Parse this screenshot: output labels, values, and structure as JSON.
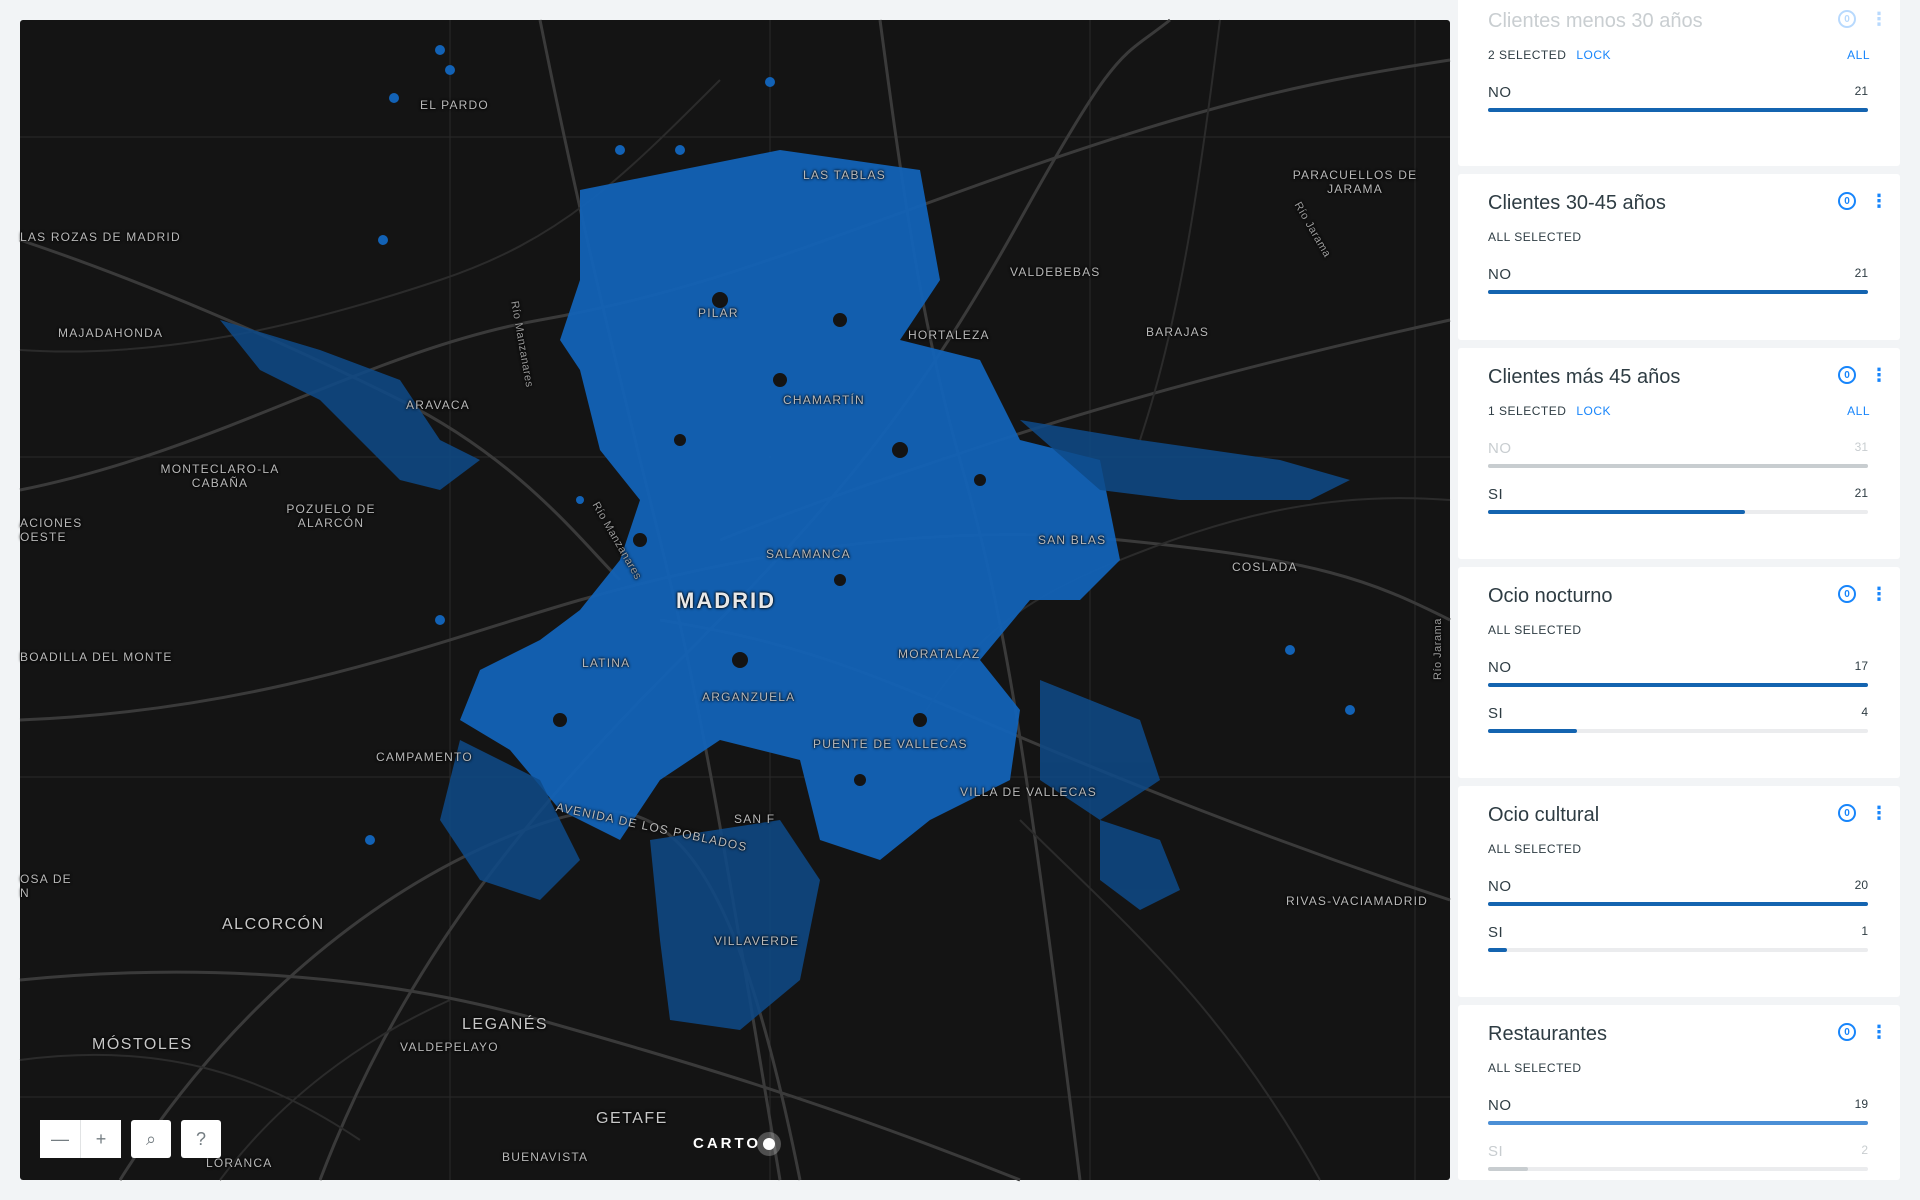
{
  "map": {
    "place_labels": [
      {
        "id": "el-pardo",
        "text": "EL PARDO"
      },
      {
        "id": "las-tablas",
        "text": "LAS TABLAS"
      },
      {
        "id": "paracuellos",
        "text": "PARACUELLOS DE JARAMA"
      },
      {
        "id": "las-rozas",
        "text": "LAS ROZAS DE MADRID"
      },
      {
        "id": "valdebebas",
        "text": "VALDEBEBAS"
      },
      {
        "id": "majadahonda",
        "text": "MAJADAHONDA"
      },
      {
        "id": "pilar",
        "text": "PILAR"
      },
      {
        "id": "hortaleza",
        "text": "HORTALEZA"
      },
      {
        "id": "barajas",
        "text": "BARAJAS"
      },
      {
        "id": "aravaca",
        "text": "ARAVACA"
      },
      {
        "id": "chamartin",
        "text": "CHAMARTÍN"
      },
      {
        "id": "monteclaro",
        "text": "MONTECLARO-LA CABAÑA"
      },
      {
        "id": "pozuelo",
        "text": "POZUELO DE ALARCÓN"
      },
      {
        "id": "aciones",
        "text": "ACIONES OESTE"
      },
      {
        "id": "san-blas",
        "text": "SAN BLAS"
      },
      {
        "id": "salamanca",
        "text": "SALAMANCA"
      },
      {
        "id": "coslada",
        "text": "COSLADA"
      },
      {
        "id": "madrid",
        "text": "MADRID"
      },
      {
        "id": "boadilla",
        "text": "BOADILLA DEL MONTE"
      },
      {
        "id": "moratalaz",
        "text": "MORATALAZ"
      },
      {
        "id": "latina",
        "text": "LATINA"
      },
      {
        "id": "arganzuela",
        "text": "ARGANZUELA"
      },
      {
        "id": "puente-vallecas",
        "text": "PUENTE DE VALLECAS"
      },
      {
        "id": "campamento",
        "text": "CAMPAMENTO"
      },
      {
        "id": "villa-vallecas",
        "text": "VILLA DE VALLECAS"
      },
      {
        "id": "avenida",
        "text": "AVENIDA DE LOS POBLADOS"
      },
      {
        "id": "san-f",
        "text": "SAN F"
      },
      {
        "id": "osa-de",
        "text": "OSA DE N"
      },
      {
        "id": "alcorcon",
        "text": "ALCORCÓN"
      },
      {
        "id": "rivas",
        "text": "RIVAS-VACIAMADRID"
      },
      {
        "id": "villaverde",
        "text": "VILLAVERDE"
      },
      {
        "id": "leganes",
        "text": "LEGANÉS"
      },
      {
        "id": "mostoles",
        "text": "MÓSTOLES"
      },
      {
        "id": "valdepelayo",
        "text": "VALDEPELAYO"
      },
      {
        "id": "getafe",
        "text": "GETAFE"
      },
      {
        "id": "buenavista",
        "text": "BUENAVISTA"
      },
      {
        "id": "lorenca",
        "text": "LORANCA"
      },
      {
        "id": "rio-manzanares-1",
        "text": "Río Manzanares"
      },
      {
        "id": "rio-manzanares-2",
        "text": "Río Manzanares"
      },
      {
        "id": "rio-jarama-1",
        "text": "Río Jarama"
      },
      {
        "id": "rio-jarama-2",
        "text": "Río Jarama"
      }
    ],
    "controls": {
      "zoom_out": "—",
      "zoom_in": "+",
      "search": "⌕",
      "help": "?"
    },
    "logo": "CARTO",
    "colors": {
      "background": "#141414",
      "hex_fill": "#1565c0",
      "hex_dim": "#0d3b6e"
    }
  },
  "widgets": [
    {
      "title": "Clientes menos 30 años",
      "status": "2 SELECTED",
      "lock": "LOCK",
      "all": "ALL",
      "categories": [
        {
          "label": "NO",
          "count": "21",
          "fraction": 1.0,
          "state": "normal"
        }
      ]
    },
    {
      "title": "Clientes 30-45 años",
      "status": "ALL SELECTED",
      "categories": [
        {
          "label": "NO",
          "count": "21",
          "fraction": 1.0,
          "state": "normal"
        }
      ]
    },
    {
      "title": "Clientes más 45 años",
      "status": "1 SELECTED",
      "lock": "LOCK",
      "all": "ALL",
      "categories": [
        {
          "label": "NO",
          "count": "31",
          "fraction": 1.0,
          "state": "muted"
        },
        {
          "label": "SI",
          "count": "21",
          "fraction": 0.677,
          "state": "normal"
        }
      ]
    },
    {
      "title": "Ocio nocturno",
      "status": "ALL SELECTED",
      "categories": [
        {
          "label": "NO",
          "count": "17",
          "fraction": 1.0,
          "state": "normal"
        },
        {
          "label": "SI",
          "count": "4",
          "fraction": 0.235,
          "state": "normal"
        }
      ]
    },
    {
      "title": "Ocio cultural",
      "status": "ALL SELECTED",
      "categories": [
        {
          "label": "NO",
          "count": "20",
          "fraction": 1.0,
          "state": "normal"
        },
        {
          "label": "SI",
          "count": "1",
          "fraction": 0.05,
          "state": "normal"
        }
      ]
    },
    {
      "title": "Restaurantes",
      "status": "ALL SELECTED",
      "categories": [
        {
          "label": "NO",
          "count": "19",
          "fraction": 1.0,
          "state": "faded"
        },
        {
          "label": "SI",
          "count": "2",
          "fraction": 0.105,
          "state": "muted"
        }
      ]
    }
  ]
}
